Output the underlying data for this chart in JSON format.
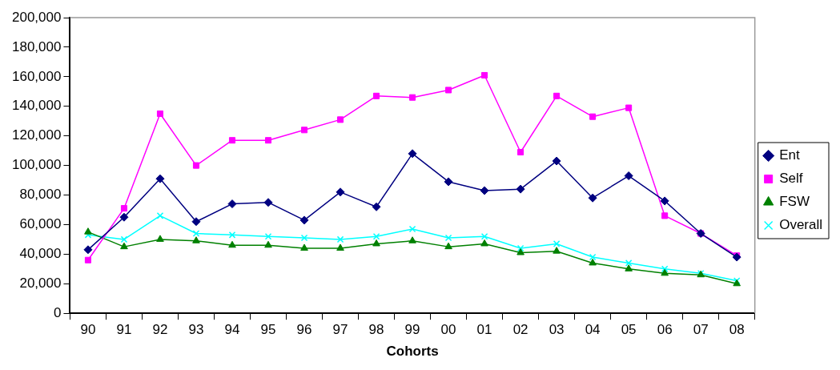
{
  "chart_data": {
    "type": "line",
    "xlabel": "Cohorts",
    "categories": [
      "90",
      "91",
      "92",
      "93",
      "94",
      "95",
      "96",
      "97",
      "98",
      "99",
      "00",
      "01",
      "02",
      "03",
      "04",
      "05",
      "06",
      "07",
      "08"
    ],
    "series": [
      {
        "name": "Ent",
        "color": "#000080",
        "marker": "diamond",
        "values": [
          43000,
          65000,
          91000,
          62000,
          74000,
          75000,
          63000,
          82000,
          72000,
          108000,
          89000,
          83000,
          84000,
          103000,
          78000,
          93000,
          76000,
          54000,
          38000
        ]
      },
      {
        "name": "Self",
        "color": "#ff00ff",
        "marker": "square",
        "values": [
          36000,
          71000,
          135000,
          100000,
          117000,
          117000,
          124000,
          131000,
          147000,
          146000,
          151000,
          161000,
          109000,
          147000,
          133000,
          139000,
          66000,
          54000,
          39000
        ]
      },
      {
        "name": "FSW",
        "color": "#008000",
        "marker": "triangle",
        "values": [
          55000,
          45000,
          50000,
          49000,
          46000,
          46000,
          44000,
          44000,
          47000,
          49000,
          45000,
          47000,
          41000,
          42000,
          34000,
          30000,
          27000,
          26000,
          20000
        ]
      },
      {
        "name": "Overall",
        "color": "#00ffff",
        "marker": "cross",
        "values": [
          53000,
          50000,
          66000,
          54000,
          53000,
          52000,
          51000,
          50000,
          52000,
          57000,
          51000,
          52000,
          44000,
          47000,
          38000,
          34000,
          30000,
          27000,
          22000
        ]
      }
    ],
    "ylim": [
      0,
      200000
    ],
    "yticks": [
      0,
      {
        "value": 20000,
        "label": "20,000"
      },
      {
        "value": 40000,
        "label": "40,000"
      },
      {
        "value": 60000,
        "label": "60,000"
      },
      {
        "value": 80000,
        "label": "80,000"
      },
      {
        "value": 100000,
        "label": "100,000"
      },
      {
        "value": 120000,
        "label": "120,000"
      },
      {
        "value": 140000,
        "label": "140,000"
      },
      {
        "value": 160000,
        "label": "160,000"
      },
      {
        "value": 180000,
        "label": "180,000"
      },
      {
        "value": 200000,
        "label": "200,000"
      }
    ],
    "grid": false,
    "legend": "right",
    "line_style": "solid"
  }
}
